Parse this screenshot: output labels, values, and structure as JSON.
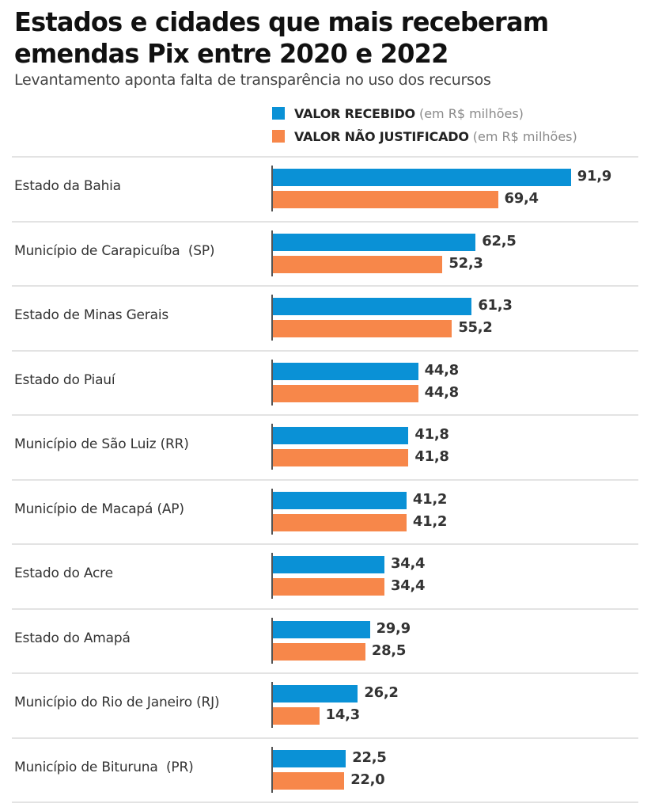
{
  "header": {
    "title": "Estados e cidades que mais receberam emendas Pix entre 2020 e 2022",
    "subtitle": "Levantamento aponta falta de transparência no uso dos recursos"
  },
  "legend": [
    {
      "label": "VALOR RECEBIDO",
      "unit": "(em R$ milhões)",
      "color": "#0a91d6"
    },
    {
      "label": "VALOR NÃO JUSTIFICADO",
      "unit": "(em R$ milhões)",
      "color": "#f7874a"
    }
  ],
  "chart_data": {
    "type": "bar",
    "orientation": "horizontal",
    "title": "Estados e cidades que mais receberam emendas Pix entre 2020 e 2022",
    "subtitle": "Levantamento aponta falta de transparência no uso dos recursos",
    "xlabel": "",
    "ylabel": "",
    "unit": "R$ milhões",
    "grid": false,
    "legend_position": "top-right",
    "xlim": [
      0,
      100
    ],
    "categories": [
      "Estado da Bahia",
      "Município de Carapicuíba  (SP)",
      "Estado de Minas Gerais",
      "Estado do Piauí",
      "Município de São Luiz (RR)",
      "Município de Macapá (AP)",
      "Estado do Acre",
      "Estado do Amapá",
      "Município do Rio de Janeiro (RJ)",
      "Município de Bituruna  (PR)"
    ],
    "series": [
      {
        "name": "VALOR RECEBIDO",
        "color": "#0a91d6",
        "values": [
          91.9,
          62.5,
          61.3,
          44.8,
          41.8,
          41.2,
          34.4,
          29.9,
          26.2,
          22.5
        ],
        "labels": [
          "91,9",
          "62,5",
          "61,3",
          "44,8",
          "41,8",
          "41,2",
          "34,4",
          "29,9",
          "26,2",
          "22,5"
        ]
      },
      {
        "name": "VALOR NÃO JUSTIFICADO",
        "color": "#f7874a",
        "values": [
          69.4,
          52.3,
          55.2,
          44.8,
          41.8,
          41.2,
          34.4,
          28.5,
          14.3,
          22.0
        ],
        "labels": [
          "69,4",
          "52,3",
          "55,2",
          "44,8",
          "41,8",
          "41,2",
          "34,4",
          "28,5",
          "14,3",
          "22,0"
        ]
      }
    ]
  }
}
